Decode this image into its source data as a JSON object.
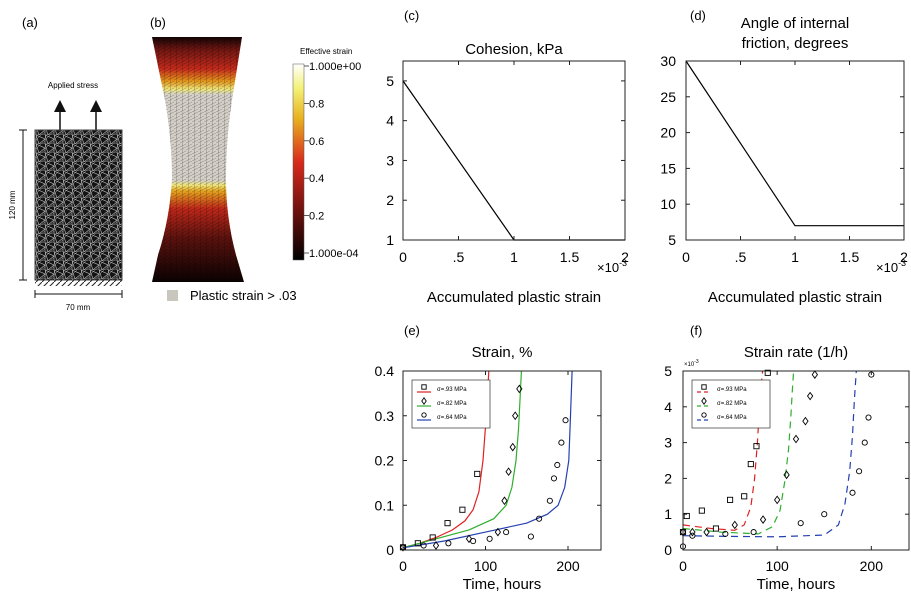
{
  "panels": {
    "a": {
      "tag": "(a)",
      "applied": "Applied stress",
      "height": "120 mm",
      "width": "70 mm"
    },
    "b": {
      "tag": "(b)",
      "colorbar_title": "Effective strain",
      "ticks": [
        "1.000e+00",
        "0.8",
        "0.6",
        "0.4",
        "0.2",
        "1.000e-04"
      ],
      "legend": "Plastic strain > .03"
    }
  },
  "chart_data": [
    {
      "id": "c",
      "tag": "(c)",
      "type": "line",
      "title": [
        "Cohesion, kPa"
      ],
      "xlabel": "Accumulated plastic strain",
      "xmult": "×10",
      "xexp": "-3",
      "xlim": [
        0,
        2
      ],
      "ylim": [
        1,
        5.5
      ],
      "xticks": [
        {
          "v": 0,
          "t": "0"
        },
        {
          "v": 0.5,
          "t": ".5"
        },
        {
          "v": 1,
          "t": "1"
        },
        {
          "v": 1.5,
          "t": "1.5"
        },
        {
          "v": 2,
          "t": "2"
        }
      ],
      "yticks": [
        {
          "v": 1,
          "t": "1"
        },
        {
          "v": 2,
          "t": "2"
        },
        {
          "v": 3,
          "t": "3"
        },
        {
          "v": 4,
          "t": "4"
        },
        {
          "v": 5,
          "t": "5"
        }
      ],
      "series": [
        {
          "color": "#000000",
          "dash": "",
          "x": [
            0,
            1,
            2
          ],
          "y": [
            5,
            1,
            1
          ]
        }
      ]
    },
    {
      "id": "d",
      "tag": "(d)",
      "type": "line",
      "title": [
        "Angle of internal",
        "friction, degrees"
      ],
      "xlabel": "Accumulated plastic strain",
      "xmult": "×10",
      "xexp": "-3",
      "xlim": [
        0,
        2
      ],
      "ylim": [
        5,
        30
      ],
      "xticks": [
        {
          "v": 0,
          "t": "0"
        },
        {
          "v": 0.5,
          "t": ".5"
        },
        {
          "v": 1,
          "t": "1"
        },
        {
          "v": 1.5,
          "t": "1.5"
        },
        {
          "v": 2,
          "t": "2"
        }
      ],
      "yticks": [
        {
          "v": 5,
          "t": "5"
        },
        {
          "v": 10,
          "t": "10"
        },
        {
          "v": 15,
          "t": "15"
        },
        {
          "v": 20,
          "t": "20"
        },
        {
          "v": 25,
          "t": "25"
        },
        {
          "v": 30,
          "t": "30"
        }
      ],
      "series": [
        {
          "color": "#000000",
          "dash": "",
          "x": [
            0,
            1,
            2
          ],
          "y": [
            30,
            7,
            7
          ]
        }
      ]
    },
    {
      "id": "e",
      "tag": "(e)",
      "type": "line+scatter",
      "title": [
        "Strain, %"
      ],
      "xlabel": "Time, hours",
      "xlim": [
        0,
        240
      ],
      "ylim": [
        0,
        0.4
      ],
      "xticks": [
        {
          "v": 0,
          "t": "0"
        },
        {
          "v": 100,
          "t": "100"
        },
        {
          "v": 200,
          "t": "200"
        }
      ],
      "yticks": [
        {
          "v": 0,
          "t": "0"
        },
        {
          "v": 0.1,
          "t": "0.1"
        },
        {
          "v": 0.2,
          "t": "0.2"
        },
        {
          "v": 0.3,
          "t": "0.3"
        },
        {
          "v": 0.4,
          "t": "0.4"
        }
      ],
      "legend": [
        {
          "label": "σ=.93 MPa",
          "color": "#e02020",
          "marker": "square",
          "dash": ""
        },
        {
          "label": "σ=.82 MPa",
          "color": "#2fae2f",
          "marker": "diamond",
          "dash": ""
        },
        {
          "label": "σ=.64 MPa",
          "color": "#2440b0",
          "marker": "circle",
          "dash": ""
        }
      ],
      "series": [
        {
          "color": "#e02020",
          "dash": "",
          "x": [
            0,
            20,
            40,
            60,
            75,
            85,
            92,
            97,
            101,
            104
          ],
          "y": [
            0.005,
            0.015,
            0.028,
            0.045,
            0.065,
            0.09,
            0.13,
            0.2,
            0.3,
            0.4
          ]
        },
        {
          "color": "#2fae2f",
          "dash": "",
          "x": [
            0,
            40,
            80,
            110,
            125,
            132,
            137,
            140,
            142,
            143.5
          ],
          "y": [
            0.005,
            0.025,
            0.045,
            0.07,
            0.1,
            0.14,
            0.2,
            0.27,
            0.34,
            0.4
          ]
        },
        {
          "color": "#2440b0",
          "dash": "",
          "x": [
            0,
            50,
            100,
            150,
            175,
            188,
            196,
            201,
            203,
            205
          ],
          "y": [
            0.005,
            0.02,
            0.04,
            0.06,
            0.08,
            0.1,
            0.14,
            0.2,
            0.3,
            0.4
          ]
        }
      ],
      "points": [
        {
          "marker": "square",
          "color": "#000000",
          "x": [
            0,
            18,
            36,
            54,
            72,
            90,
            98
          ],
          "y": [
            0.006,
            0.015,
            0.028,
            0.06,
            0.09,
            0.17,
            0.35
          ]
        },
        {
          "marker": "diamond",
          "color": "#000000",
          "x": [
            0,
            40,
            80,
            115,
            123,
            128,
            133,
            136,
            141
          ],
          "y": [
            0.006,
            0.01,
            0.025,
            0.04,
            0.11,
            0.175,
            0.23,
            0.3,
            0.36
          ]
        },
        {
          "marker": "circle",
          "color": "#000000",
          "x": [
            0,
            25,
            55,
            85,
            105,
            125,
            155,
            165,
            178,
            183,
            187,
            192,
            197
          ],
          "y": [
            0.006,
            0.01,
            0.015,
            0.02,
            0.025,
            0.04,
            0.03,
            0.07,
            0.11,
            0.16,
            0.19,
            0.24,
            0.29
          ]
        }
      ]
    },
    {
      "id": "f",
      "tag": "(f)",
      "type": "line+scatter",
      "title": [
        "Strain rate (1/h)"
      ],
      "xlabel": "Time, hours",
      "ymult": "×10",
      "yexp": "-3",
      "xlim": [
        0,
        240
      ],
      "ylim": [
        0,
        5
      ],
      "xticks": [
        {
          "v": 0,
          "t": "0"
        },
        {
          "v": 100,
          "t": "100"
        },
        {
          "v": 200,
          "t": "200"
        }
      ],
      "yticks": [
        {
          "v": 0,
          "t": "0"
        },
        {
          "v": 1,
          "t": "1"
        },
        {
          "v": 2,
          "t": "2"
        },
        {
          "v": 3,
          "t": "3"
        },
        {
          "v": 4,
          "t": "4"
        },
        {
          "v": 5,
          "t": "5"
        }
      ],
      "legend": [
        {
          "label": "σ=.93 MPa",
          "color": "#e02020",
          "marker": "square",
          "dash": "7,5"
        },
        {
          "label": "σ=.82 MPa",
          "color": "#2fae2f",
          "marker": "diamond",
          "dash": "7,5"
        },
        {
          "label": "σ=.64 MPa",
          "color": "#2440b0",
          "marker": "circle",
          "dash": "7,5"
        }
      ],
      "series": [
        {
          "color": "#e02020",
          "dash": "7,5",
          "x": [
            0,
            30,
            55,
            65,
            72,
            76,
            79,
            81,
            83,
            84.5
          ],
          "y": [
            0.7,
            0.6,
            0.55,
            0.7,
            1.2,
            2,
            3,
            3.9,
            4.6,
            5
          ]
        },
        {
          "color": "#2fae2f",
          "dash": "7,5",
          "x": [
            0,
            40,
            80,
            95,
            103,
            108,
            112,
            114.5,
            116,
            117.5
          ],
          "y": [
            0.6,
            0.5,
            0.45,
            0.65,
            1.1,
            1.9,
            2.8,
            3.7,
            4.4,
            5
          ]
        },
        {
          "color": "#2440b0",
          "dash": "7,5",
          "x": [
            0,
            50,
            100,
            150,
            165,
            172,
            177,
            180,
            182,
            184
          ],
          "y": [
            0.4,
            0.38,
            0.37,
            0.42,
            0.7,
            1.3,
            2.2,
            3.2,
            4.2,
            5
          ]
        }
      ],
      "points": [
        {
          "marker": "square",
          "color": "#000000",
          "x": [
            0,
            4,
            20,
            35,
            50,
            65,
            72,
            78,
            85,
            90
          ],
          "y": [
            0.5,
            0.95,
            1.1,
            0.6,
            1.4,
            1.5,
            2.4,
            2.9,
            4.2,
            4.95
          ]
        },
        {
          "marker": "diamond",
          "color": "#000000",
          "x": [
            0,
            10,
            25,
            55,
            85,
            100,
            110,
            120,
            130,
            135,
            140
          ],
          "y": [
            0.5,
            0.5,
            0.5,
            0.7,
            0.85,
            1.4,
            2.1,
            3.1,
            3.6,
            4.3,
            4.9
          ]
        },
        {
          "marker": "circle",
          "color": "#000000",
          "x": [
            0,
            10,
            45,
            75,
            125,
            150,
            180,
            187,
            193,
            197,
            200
          ],
          "y": [
            0.1,
            0.4,
            0.45,
            0.5,
            0.75,
            1,
            1.6,
            2.2,
            3,
            3.7,
            4.9
          ]
        }
      ]
    }
  ]
}
